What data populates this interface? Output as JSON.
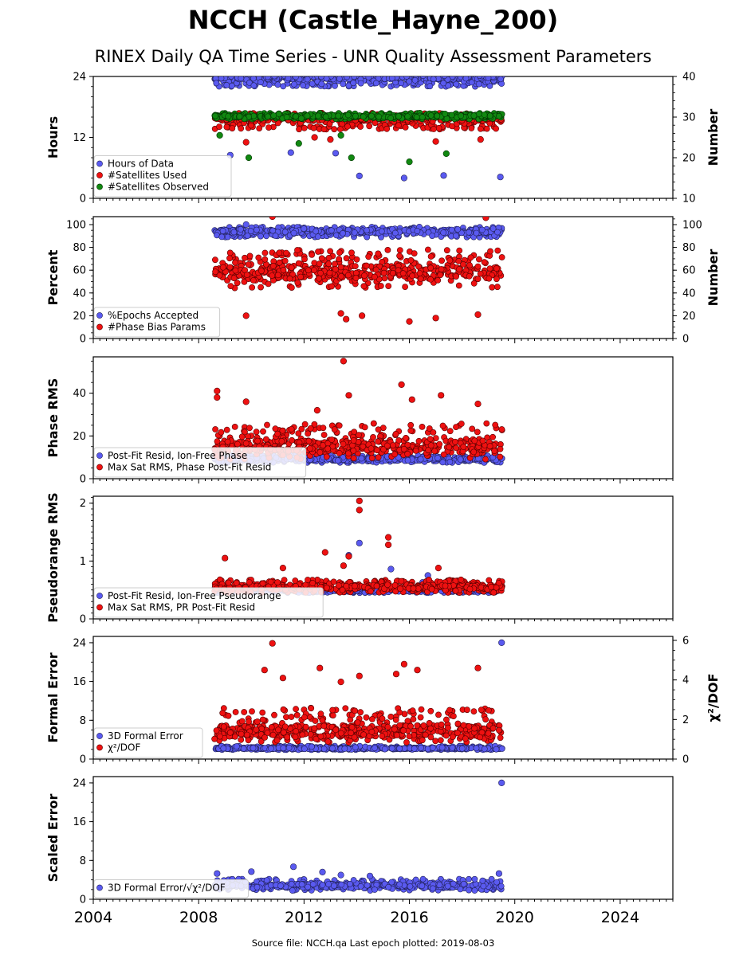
{
  "title": "NCCH (Castle_Hayne_200)",
  "subtitle": "RINEX Daily QA Time Series - UNR Quality Assessment Parameters",
  "footer": "Source file: NCCH.qa Last epoch plotted: 2019-08-03",
  "colors": {
    "blue": "#5555ee",
    "red": "#ee1111",
    "green": "#118811",
    "dark": "#151540"
  },
  "chart_data": [
    {
      "type": "scatter",
      "xlim": [
        2004,
        2026
      ],
      "xticks": [
        "2004",
        "2008",
        "2012",
        "2016",
        "2020",
        "2024"
      ],
      "ylabel": "Hours",
      "ylim": [
        0,
        24
      ],
      "yticks": [
        "0",
        "12",
        "24"
      ],
      "y2label": "Number",
      "y2lim": [
        10,
        40
      ],
      "y2ticks": [
        "10",
        "20",
        "30",
        "40"
      ],
      "legend_position": "lower-left",
      "series": [
        {
          "name": "Hours of Data",
          "color": "blue",
          "axis": "left",
          "typical": 23.8,
          "band": [
            22,
            24
          ],
          "points": [
            [
              2009.2,
              8.5
            ],
            [
              2013.2,
              8.9
            ],
            [
              2015.8,
              4.0
            ],
            [
              2017.3,
              4.5
            ],
            [
              2019.45,
              4.2
            ],
            [
              2014.1,
              4.4
            ],
            [
              2011.5,
              9.0
            ]
          ]
        },
        {
          "name": "#Satellites Used",
          "color": "red",
          "axis": "right",
          "typical": 29.8,
          "band": [
            27,
            31
          ],
          "points": [
            [
              2009.8,
              23.8
            ],
            [
              2013.0,
              24.5
            ],
            [
              2017.0,
              24.0
            ],
            [
              2018.7,
              24.5
            ],
            [
              2012.4,
              25.0
            ]
          ]
        },
        {
          "name": "#Satellites Observed",
          "color": "green",
          "axis": "right",
          "typical": 30.2,
          "band": [
            29.5,
            31
          ],
          "points": [
            [
              2009.9,
              20.0
            ],
            [
              2013.8,
              20.0
            ],
            [
              2016.0,
              19.0
            ],
            [
              2017.4,
              21.0
            ],
            [
              2011.8,
              23.5
            ],
            [
              2008.8,
              25.5
            ],
            [
              2013.4,
              25.5
            ]
          ]
        }
      ]
    },
    {
      "type": "scatter",
      "xlim": [
        2004,
        2026
      ],
      "ylabel": "Percent",
      "ylim": [
        0,
        107
      ],
      "yticks": [
        "0",
        "20",
        "40",
        "60",
        "80",
        "100"
      ],
      "y2label": "Number",
      "y2lim": [
        0,
        107
      ],
      "y2ticks": [
        "0",
        "20",
        "40",
        "60",
        "80",
        "100"
      ],
      "legend_position": "lower-left",
      "series": [
        {
          "name": "%Epochs Accepted",
          "color": "blue",
          "axis": "left",
          "typical": 94,
          "band": [
            89,
            98
          ],
          "points": [
            [
              2009.8,
              100
            ]
          ]
        },
        {
          "name": "#Phase Bias Params",
          "color": "red",
          "axis": "right",
          "typical": 58,
          "band": [
            44,
            78
          ],
          "points": [
            [
              2010.8,
              107
            ],
            [
              2018.9,
              106
            ],
            [
              2009.8,
              20
            ],
            [
              2013.6,
              17
            ],
            [
              2016.0,
              15
            ],
            [
              2018.6,
              21
            ],
            [
              2013.4,
              22
            ],
            [
              2014.2,
              20
            ],
            [
              2017.0,
              18
            ]
          ]
        }
      ]
    },
    {
      "type": "scatter",
      "xlim": [
        2004,
        2026
      ],
      "ylabel": "Phase RMS",
      "ylim": [
        0,
        57
      ],
      "yticks": [
        "0",
        "20",
        "40"
      ],
      "legend_position": "lower-left",
      "series": [
        {
          "name": "Post-Fit Resid, Ion-Free Phase",
          "color": "blue",
          "axis": "left",
          "typical": 9,
          "band": [
            7.5,
            11
          ],
          "points": []
        },
        {
          "name": "Max Sat RMS, Phase Post-Fit Resid",
          "color": "red",
          "axis": "left",
          "typical": 15,
          "band": [
            9,
            26
          ],
          "points": [
            [
              2013.5,
              55
            ],
            [
              2015.7,
              44
            ],
            [
              2008.7,
              41
            ],
            [
              2008.7,
              38
            ],
            [
              2013.7,
              39
            ],
            [
              2017.2,
              39
            ],
            [
              2016.1,
              37
            ],
            [
              2018.6,
              35
            ],
            [
              2009.8,
              36
            ],
            [
              2012.5,
              32
            ]
          ]
        }
      ]
    },
    {
      "type": "scatter",
      "xlim": [
        2004,
        2026
      ],
      "ylabel": "Pseudorange RMS",
      "ylim": [
        0,
        2.12
      ],
      "yticks": [
        "0",
        "1",
        "2"
      ],
      "legend_position": "lower-left",
      "series": [
        {
          "name": "Post-Fit Resid, Ion-Free Pseudorange",
          "color": "blue",
          "axis": "left",
          "typical": 0.5,
          "band": [
            0.45,
            0.55
          ],
          "points": [
            [
              2013.7,
              1.1
            ],
            [
              2014.1,
              1.31
            ],
            [
              2015.3,
              0.86
            ],
            [
              2016.5,
              0.63
            ],
            [
              2016.7,
              0.75
            ]
          ]
        },
        {
          "name": "Max Sat RMS, PR Post-Fit Resid",
          "color": "red",
          "axis": "left",
          "typical": 0.55,
          "band": [
            0.45,
            0.68
          ],
          "points": [
            [
              2014.1,
              2.04
            ],
            [
              2014.1,
              1.88
            ],
            [
              2015.2,
              1.41
            ],
            [
              2015.2,
              1.28
            ],
            [
              2012.8,
              1.15
            ],
            [
              2013.7,
              1.08
            ],
            [
              2009.0,
              1.05
            ],
            [
              2013.5,
              0.92
            ],
            [
              2011.2,
              0.88
            ],
            [
              2017.1,
              0.88
            ]
          ]
        }
      ]
    },
    {
      "type": "scatter",
      "xlim": [
        2004,
        2026
      ],
      "ylabel": "Formal Error",
      "ylim": [
        0,
        25.3
      ],
      "yticks": [
        "0",
        "8",
        "16",
        "24"
      ],
      "y2label": "χ²/DOF",
      "y2lim": [
        0,
        6.2
      ],
      "y2ticks": [
        "0",
        "2",
        "4",
        "6"
      ],
      "legend_position": "lower-left",
      "series": [
        {
          "name": "3D Formal Error",
          "color": "blue",
          "axis": "left",
          "typical": 2.2,
          "band": [
            1.9,
            2.7
          ],
          "points": [
            [
              2019.5,
              24
            ]
          ]
        },
        {
          "name": "χ²/DOF",
          "color": "red",
          "axis": "right",
          "typical": 1.4,
          "band": [
            0.8,
            2.6
          ],
          "points": [
            [
              2010.8,
              5.85
            ],
            [
              2010.5,
              4.5
            ],
            [
              2012.6,
              4.6
            ],
            [
              2015.8,
              4.8
            ],
            [
              2018.6,
              4.6
            ],
            [
              2016.3,
              4.5
            ],
            [
              2011.2,
              4.1
            ],
            [
              2014.1,
              4.2
            ],
            [
              2015.5,
              4.3
            ],
            [
              2013.4,
              3.9
            ]
          ]
        }
      ]
    },
    {
      "type": "scatter",
      "xlim": [
        2004,
        2026
      ],
      "xticks": [
        "2004",
        "2008",
        "2012",
        "2016",
        "2020",
        "2024"
      ],
      "ylabel": "Scaled Error",
      "ylim": [
        0,
        25.3
      ],
      "yticks": [
        "0",
        "8",
        "16",
        "24"
      ],
      "legend_position": "lower-left",
      "series": [
        {
          "name": "3D Formal Error/√χ²/DOF",
          "color": "blue",
          "axis": "left",
          "typical": 2.8,
          "band": [
            1.8,
            4.2
          ],
          "points": [
            [
              2019.5,
              24
            ],
            [
              2011.6,
              6.7
            ],
            [
              2010.0,
              5.7
            ],
            [
              2012.7,
              5.6
            ],
            [
              2008.7,
              5.3
            ],
            [
              2019.4,
              5.3
            ],
            [
              2013.4,
              5.0
            ],
            [
              2014.5,
              4.8
            ]
          ]
        }
      ]
    }
  ]
}
